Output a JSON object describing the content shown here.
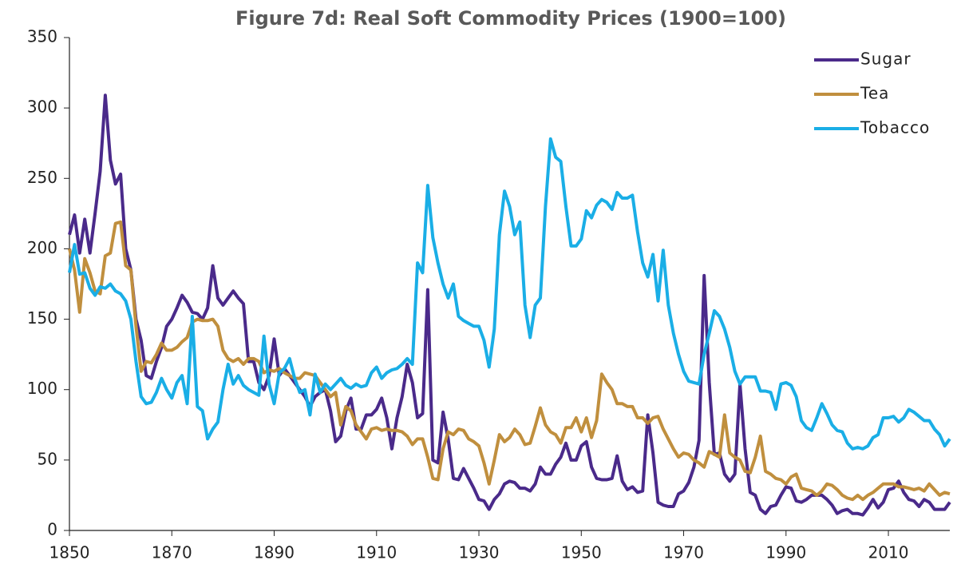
{
  "chart_data": {
    "type": "line",
    "title": "Figure 7d: Real Soft Commodity Prices (1900=100)",
    "x": [
      1850,
      1851,
      1852,
      1853,
      1854,
      1855,
      1856,
      1857,
      1858,
      1859,
      1860,
      1861,
      1862,
      1863,
      1864,
      1865,
      1866,
      1867,
      1868,
      1869,
      1870,
      1871,
      1872,
      1873,
      1874,
      1875,
      1876,
      1877,
      1878,
      1879,
      1880,
      1881,
      1882,
      1883,
      1884,
      1885,
      1886,
      1887,
      1888,
      1889,
      1890,
      1891,
      1892,
      1893,
      1894,
      1895,
      1896,
      1897,
      1898,
      1899,
      1900,
      1901,
      1902,
      1903,
      1904,
      1905,
      1906,
      1907,
      1908,
      1909,
      1910,
      1911,
      1912,
      1913,
      1914,
      1915,
      1916,
      1917,
      1918,
      1919,
      1920,
      1921,
      1922,
      1923,
      1924,
      1925,
      1926,
      1927,
      1928,
      1929,
      1930,
      1931,
      1932,
      1933,
      1934,
      1935,
      1936,
      1937,
      1938,
      1939,
      1940,
      1941,
      1942,
      1943,
      1944,
      1945,
      1946,
      1947,
      1948,
      1949,
      1950,
      1951,
      1952,
      1953,
      1954,
      1955,
      1956,
      1957,
      1958,
      1959,
      1960,
      1961,
      1962,
      1963,
      1964,
      1965,
      1966,
      1967,
      1968,
      1969,
      1970,
      1971,
      1972,
      1973,
      1974,
      1975,
      1976,
      1977,
      1978,
      1979,
      1980,
      1981,
      1982,
      1983,
      1984,
      1985,
      1986,
      1987,
      1988,
      1989,
      1990,
      1991,
      1992,
      1993,
      1994,
      1995,
      1996,
      1997,
      1998,
      1999,
      2000,
      2001,
      2002,
      2003,
      2004,
      2005,
      2006,
      2007,
      2008,
      2009,
      2010,
      2011,
      2012,
      2013,
      2014,
      2015,
      2016,
      2017,
      2018,
      2019,
      2020,
      2021,
      2022
    ],
    "series": [
      {
        "name": "Sugar",
        "color": "#4a2a8a",
        "values": [
          210,
          224,
          197,
          221,
          197,
          225,
          255,
          309,
          263,
          246,
          253,
          200,
          185,
          150,
          135,
          110,
          108,
          120,
          130,
          145,
          150,
          158,
          167,
          162,
          155,
          154,
          150,
          158,
          188,
          165,
          160,
          165,
          170,
          165,
          161,
          120,
          120,
          105,
          100,
          110,
          136,
          110,
          115,
          110,
          105,
          100,
          95,
          88,
          95,
          98,
          100,
          85,
          63,
          67,
          85,
          94,
          72,
          72,
          82,
          82,
          86,
          94,
          80,
          58,
          80,
          95,
          118,
          105,
          80,
          83,
          171,
          50,
          48,
          84,
          65,
          37,
          36,
          44,
          37,
          30,
          22,
          21,
          15,
          22,
          26,
          33,
          35,
          34,
          30,
          30,
          28,
          33,
          45,
          40,
          40,
          47,
          52,
          62,
          50,
          50,
          60,
          63,
          45,
          37,
          36,
          36,
          37,
          53,
          35,
          29,
          31,
          27,
          28,
          82,
          55,
          20,
          18,
          17,
          17,
          26,
          28,
          34,
          45,
          64,
          181,
          105,
          54,
          55,
          40,
          35,
          40,
          104,
          58,
          27,
          25,
          15,
          12,
          17,
          18,
          25,
          31,
          30,
          21,
          20,
          22,
          25,
          25,
          25,
          22,
          18,
          12,
          14,
          15,
          12,
          12,
          11,
          16,
          22,
          16,
          20,
          29,
          30,
          35,
          27,
          22,
          21,
          17,
          22,
          20,
          15,
          15,
          15,
          20
        ]
      },
      {
        "name": "Tea",
        "color": "#c08f3e",
        "values": [
          200,
          185,
          155,
          193,
          183,
          170,
          168,
          195,
          197,
          218,
          219,
          188,
          185,
          145,
          113,
          120,
          119,
          125,
          133,
          128,
          128,
          130,
          134,
          137,
          148,
          150,
          149,
          149,
          150,
          145,
          128,
          122,
          120,
          122,
          118,
          122,
          122,
          120,
          112,
          114,
          113,
          115,
          112,
          110,
          108,
          108,
          112,
          111,
          110,
          105,
          100,
          95,
          98,
          75,
          88,
          85,
          75,
          70,
          65,
          72,
          73,
          71,
          72,
          71,
          71,
          70,
          67,
          61,
          65,
          65,
          52,
          37,
          36,
          58,
          70,
          68,
          72,
          71,
          65,
          63,
          60,
          48,
          33,
          50,
          68,
          63,
          66,
          72,
          68,
          61,
          62,
          74,
          87,
          75,
          70,
          68,
          62,
          73,
          73,
          80,
          70,
          80,
          66,
          78,
          111,
          105,
          100,
          90,
          90,
          88,
          88,
          80,
          80,
          76,
          80,
          81,
          72,
          65,
          58,
          52,
          55,
          54,
          50,
          48,
          45,
          56,
          54,
          52,
          82,
          55,
          52,
          50,
          42,
          41,
          52,
          67,
          42,
          40,
          37,
          36,
          33,
          38,
          40,
          30,
          29,
          28,
          25,
          28,
          33,
          32,
          29,
          25,
          23,
          22,
          25,
          22,
          25,
          27,
          30,
          33,
          33,
          33,
          31,
          31,
          30,
          29,
          30,
          28,
          33,
          29,
          25,
          27,
          26
        ]
      },
      {
        "name": "Tobacco",
        "color": "#1aaee6",
        "values": [
          183,
          203,
          182,
          183,
          172,
          167,
          173,
          172,
          175,
          170,
          168,
          163,
          150,
          120,
          95,
          90,
          91,
          98,
          108,
          100,
          94,
          105,
          110,
          90,
          152,
          88,
          85,
          65,
          72,
          77,
          100,
          118,
          104,
          110,
          103,
          100,
          98,
          96,
          138,
          104,
          90,
          112,
          115,
          122,
          108,
          98,
          100,
          82,
          111,
          98,
          104,
          100,
          104,
          108,
          103,
          101,
          104,
          102,
          103,
          112,
          116,
          108,
          112,
          114,
          115,
          118,
          122,
          118,
          190,
          183,
          245,
          208,
          190,
          175,
          165,
          175,
          152,
          149,
          147,
          145,
          145,
          135,
          116,
          143,
          210,
          241,
          230,
          210,
          219,
          160,
          137,
          160,
          165,
          230,
          278,
          265,
          262,
          230,
          202,
          202,
          207,
          227,
          222,
          231,
          235,
          233,
          228,
          240,
          236,
          236,
          238,
          212,
          190,
          180,
          196,
          163,
          199,
          160,
          140,
          125,
          113,
          106,
          105,
          104,
          125,
          140,
          156,
          152,
          143,
          130,
          113,
          104,
          109,
          109,
          109,
          99,
          99,
          98,
          86,
          104,
          105,
          103,
          95,
          78,
          73,
          71,
          80,
          90,
          83,
          75,
          71,
          70,
          62,
          58,
          59,
          58,
          60,
          66,
          68,
          80,
          80,
          81,
          77,
          80,
          86,
          84,
          81,
          78,
          78,
          72,
          68,
          60,
          65
        ]
      }
    ],
    "xlim": [
      1850,
      2022
    ],
    "xticks": [
      1850,
      1870,
      1890,
      1910,
      1930,
      1950,
      1970,
      1990,
      2010
    ],
    "ylim": [
      0,
      350
    ],
    "yticks": [
      0,
      50,
      100,
      150,
      200,
      250,
      300,
      350
    ],
    "legend": "top-right"
  }
}
